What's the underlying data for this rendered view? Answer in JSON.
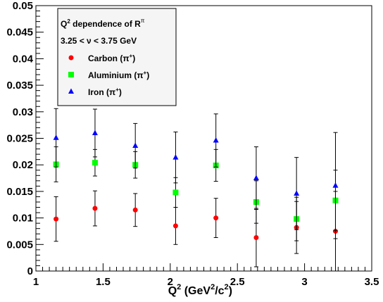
{
  "chart_data": {
    "type": "scatter",
    "title": "",
    "xlabel": "Q",
    "xlabel_sup1": "2",
    "xlabel_mid": " (GeV",
    "xlabel_sup2": "2",
    "xlabel_mid2": "/c",
    "xlabel_sup3": "2",
    "xlabel_end": ")",
    "ylabel": "",
    "xlim": [
      1,
      3.5
    ],
    "ylim": [
      0,
      0.05
    ],
    "x_ticks": [
      1,
      1.5,
      2,
      2.5,
      3,
      3.5
    ],
    "x_tick_labels": [
      "1",
      "1.5",
      "2",
      "2.5",
      "3",
      "3.5"
    ],
    "y_ticks": [
      0,
      0.005,
      0.01,
      0.015,
      0.02,
      0.025,
      0.03,
      0.035,
      0.04,
      0.045,
      0.05
    ],
    "y_tick_labels": [
      "0",
      "0.005",
      "0.01",
      "0.015",
      "0.02",
      "0.025",
      "0.03",
      "0.035",
      "0.04",
      "0.045",
      "0.05"
    ],
    "grid": false,
    "legend_placement": "top-left",
    "legend": {
      "title_main": "Q",
      "title_sup": "2",
      "title_rest": " dependence of R",
      "title_sup2": "π",
      "subtitle": "3.25 < ν < 3.75 GeV"
    },
    "series": [
      {
        "name": "Carbon (π⁺)",
        "label_main": "Carbon (π",
        "label_sup": "+",
        "label_end": ")",
        "color": "#ff0000",
        "marker": "circle",
        "x": [
          1.15,
          1.44,
          1.74,
          2.04,
          2.34,
          2.64,
          2.94,
          3.23
        ],
        "y": [
          0.0098,
          0.0118,
          0.0115,
          0.0085,
          0.01,
          0.0063,
          0.0082,
          0.0075
        ],
        "err": [
          0.0042,
          0.0033,
          0.0031,
          0.0035,
          0.0037,
          0.0055,
          0.0049,
          0.0075
        ]
      },
      {
        "name": "Aluminium (π⁺)",
        "label_main": "Aluminium (π",
        "label_sup": "+",
        "label_end": ")",
        "color": "#00ff00",
        "marker": "square",
        "x": [
          1.15,
          1.44,
          1.74,
          2.04,
          2.34,
          2.64,
          2.94,
          3.23
        ],
        "y": [
          0.0201,
          0.0204,
          0.02,
          0.0148,
          0.0199,
          0.013,
          0.0098,
          0.0133
        ],
        "err": [
          0.0033,
          0.0025,
          0.0025,
          0.0028,
          0.003,
          0.004,
          0.0041,
          0.0057
        ]
      },
      {
        "name": "Iron (π⁺)",
        "label_main": "Iron (π",
        "label_sup": "+",
        "label_end": ")",
        "color": "#0000ff",
        "marker": "triangle",
        "x": [
          1.15,
          1.44,
          1.74,
          2.04,
          2.34,
          2.64,
          2.94,
          3.23
        ],
        "y": [
          0.0251,
          0.026,
          0.0236,
          0.0214,
          0.0246,
          0.0175,
          0.0146,
          0.0161
        ],
        "err": [
          0.0055,
          0.0045,
          0.0042,
          0.0048,
          0.005,
          0.0059,
          0.0068,
          0.01
        ]
      }
    ]
  }
}
